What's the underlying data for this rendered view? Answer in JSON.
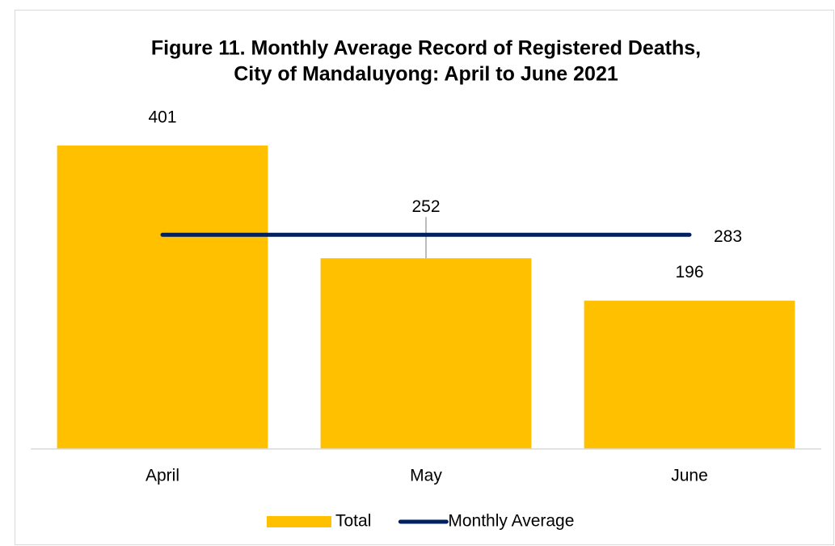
{
  "chart_data": {
    "type": "bar",
    "title": [
      "Figure 11. Monthly Average Record of Registered Deaths,",
      "City of Mandaluyong: April to June 2021"
    ],
    "categories": [
      "April",
      "May",
      "June"
    ],
    "series": [
      {
        "name": "Total",
        "type": "bar",
        "color": "#ffc000",
        "values": [
          401,
          252,
          196
        ]
      },
      {
        "name": "Monthly Average",
        "type": "line",
        "color": "#002060",
        "values": [
          283,
          283,
          283
        ]
      }
    ],
    "ylim": [
      0,
      450
    ],
    "legend": "bottom"
  }
}
